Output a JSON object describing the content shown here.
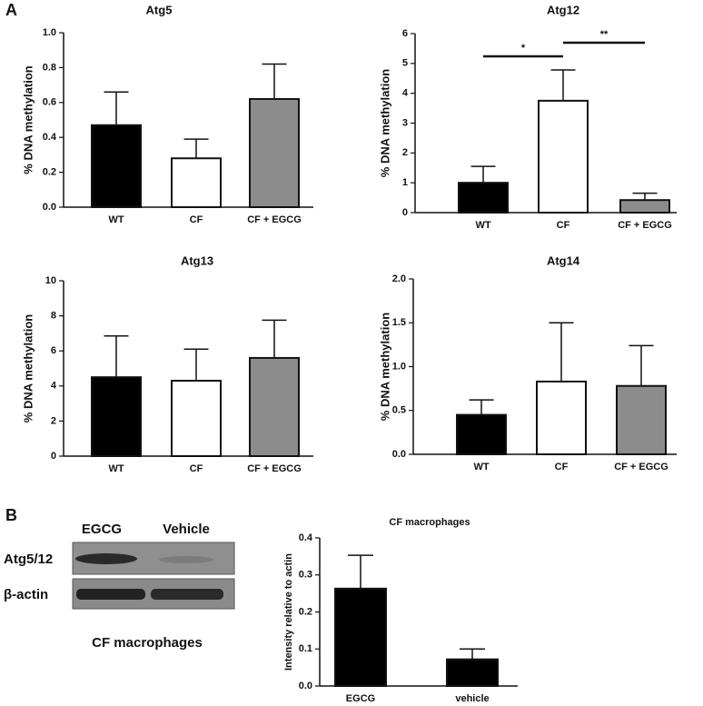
{
  "panel_labels": [
    "A",
    "B"
  ],
  "blot": {
    "lanes": [
      "EGCG",
      "Vehicle"
    ],
    "rows": [
      "Atg5/12",
      "β-actin"
    ],
    "caption": "CF macrophages"
  },
  "chart_data": [
    {
      "type": "bar",
      "title": "Atg5",
      "y_label": "% DNA methylation",
      "categories": [
        "WT",
        "CF",
        "CF + EGCG"
      ],
      "values": [
        0.47,
        0.28,
        0.62
      ],
      "errors": [
        0.19,
        0.11,
        0.2
      ],
      "colors": [
        "#000000",
        "#ffffff",
        "#8c8c8c"
      ],
      "ylim": [
        0,
        1
      ],
      "yticks": [
        {
          "value": 0,
          "label": "0.0"
        },
        0.2,
        0.4,
        0.6,
        0.8,
        {
          "value": 1,
          "label": "1.0"
        }
      ]
    },
    {
      "type": "bar",
      "title": "Atg12",
      "y_label": "% DNA methylation",
      "categories": [
        "WT",
        "CF",
        "CF + EGCG"
      ],
      "values": [
        1.0,
        3.75,
        0.42
      ],
      "errors": [
        0.55,
        1.03,
        0.23
      ],
      "colors": [
        "#000000",
        "#ffffff",
        "#8c8c8c"
      ],
      "ylim": [
        0,
        6
      ],
      "yticks": [
        0,
        1,
        2,
        3,
        4,
        5,
        6
      ],
      "significance": [
        {
          "label": "*",
          "between": [
            "WT",
            "CF"
          ]
        },
        {
          "label": "**",
          "between": [
            "CF",
            "CF + EGCG"
          ]
        }
      ]
    },
    {
      "type": "bar",
      "title": "Atg13",
      "y_label": "% DNA methylation",
      "categories": [
        "WT",
        "CF",
        "CF + EGCG"
      ],
      "values": [
        4.5,
        4.3,
        5.6
      ],
      "errors": [
        2.35,
        1.8,
        2.15
      ],
      "colors": [
        "#000000",
        "#ffffff",
        "#8c8c8c"
      ],
      "ylim": [
        0,
        10
      ],
      "yticks": [
        0,
        2,
        4,
        6,
        8,
        10
      ]
    },
    {
      "type": "bar",
      "title": "Atg14",
      "y_label": "% DNA methylation",
      "categories": [
        "WT",
        "CF",
        "CF + EGCG"
      ],
      "values": [
        0.45,
        0.83,
        0.78
      ],
      "errors": [
        0.17,
        0.67,
        0.46
      ],
      "colors": [
        "#000000",
        "#ffffff",
        "#8c8c8c"
      ],
      "ylim": [
        0,
        2
      ],
      "yticks": [
        {
          "value": 0,
          "label": "0.0"
        },
        0.5,
        {
          "value": 1,
          "label": "1.0"
        },
        1.5,
        {
          "value": 2,
          "label": "2.0"
        }
      ]
    },
    {
      "type": "bar",
      "title": "CF macrophages",
      "y_label": "Intensity relative to actin",
      "categories": [
        "EGCG",
        "vehicle"
      ],
      "values": [
        0.263,
        0.072
      ],
      "errors": [
        0.09,
        0.028
      ],
      "colors": [
        "#000000",
        "#000000"
      ],
      "ylim": [
        0,
        0.4
      ],
      "yticks": [
        {
          "value": 0,
          "label": "0.0"
        },
        0.1,
        0.2,
        0.3,
        0.4
      ]
    }
  ]
}
